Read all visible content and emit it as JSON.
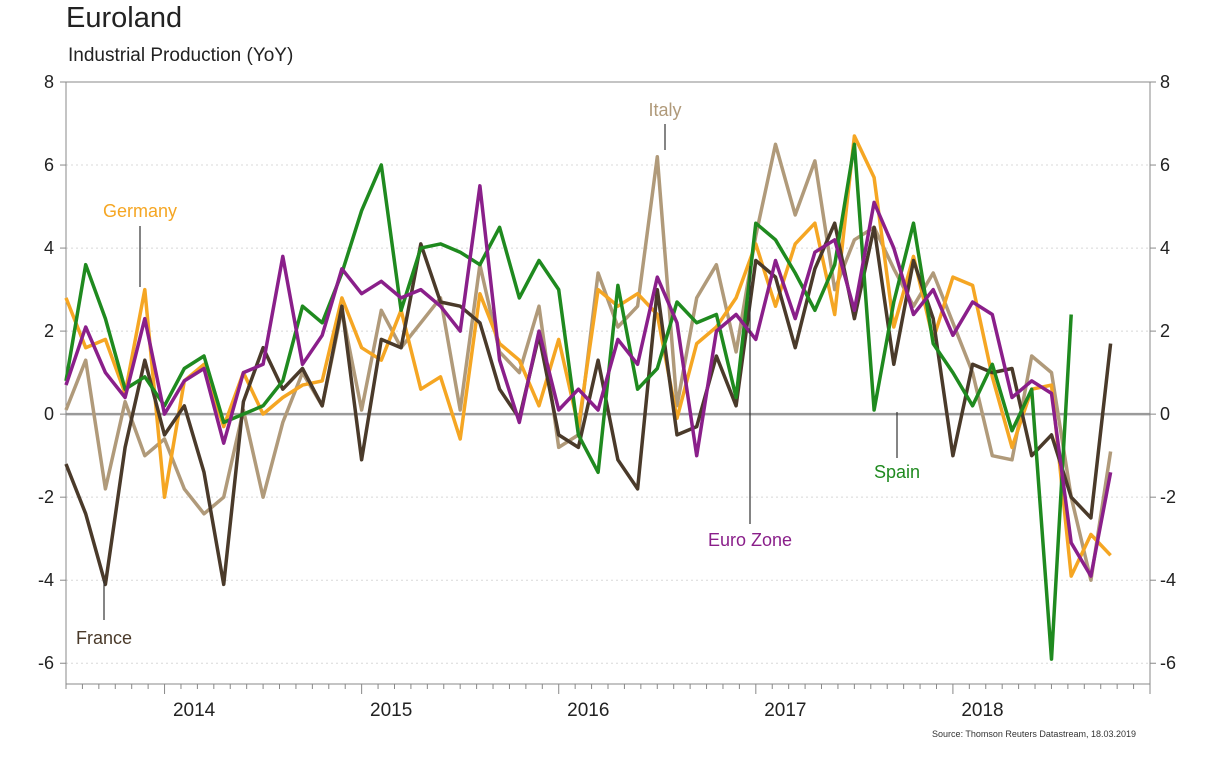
{
  "chart_data": {
    "type": "line",
    "title": "Euroland",
    "subtitle": "Industrial Production (YoY)",
    "source": "Source: Thomson Reuters Datastream, 18.03.2019",
    "ylim": [
      -6.5,
      8
    ],
    "yticks": [
      8,
      6,
      4,
      2,
      0,
      -2,
      -4,
      -6
    ],
    "year_labels": [
      {
        "label": "2014",
        "x": 2014.0
      },
      {
        "label": "2015",
        "x": 2015.0
      },
      {
        "label": "2016",
        "x": 2016.0
      },
      {
        "label": "2017",
        "x": 2017.0
      },
      {
        "label": "2018",
        "x": 2018.0
      }
    ],
    "xlim": [
      2013.5,
      2019.0
    ],
    "grid": true,
    "series": [
      {
        "name": "Italy",
        "color": "#b09a7a",
        "x": [
          2013.5,
          2013.6,
          2013.7,
          2013.8,
          2013.9,
          2014.0,
          2014.1,
          2014.2,
          2014.3,
          2014.4,
          2014.5,
          2014.6,
          2014.7,
          2014.8,
          2014.9,
          2015.0,
          2015.1,
          2015.2,
          2015.3,
          2015.4,
          2015.5,
          2015.6,
          2015.7,
          2015.8,
          2015.9,
          2016.0,
          2016.1,
          2016.2,
          2016.3,
          2016.4,
          2016.5,
          2016.6,
          2016.7,
          2016.8,
          2016.9,
          2017.0,
          2017.1,
          2017.2,
          2017.3,
          2017.4,
          2017.5,
          2017.6,
          2017.7,
          2017.8,
          2017.9,
          2018.0,
          2018.1,
          2018.2,
          2018.3,
          2018.4,
          2018.5,
          2018.6,
          2018.7,
          2018.8
        ],
        "y": [
          0.1,
          1.3,
          -1.8,
          0.3,
          -1.0,
          -0.6,
          -1.8,
          -2.4,
          -2.0,
          0.1,
          -2.0,
          -0.2,
          1.0,
          0.2,
          2.5,
          0.1,
          2.5,
          1.6,
          2.2,
          2.8,
          0.1,
          3.6,
          1.5,
          1.0,
          2.6,
          -0.8,
          -0.5,
          3.4,
          2.1,
          2.6,
          6.2,
          0.2,
          2.8,
          3.6,
          1.5,
          4.3,
          6.5,
          4.8,
          6.1,
          3.0,
          4.2,
          4.5,
          3.5,
          2.6,
          3.4,
          2.2,
          1.0,
          -1.0,
          -1.1,
          1.4,
          1.0,
          -2.0,
          -4.0,
          -0.9
        ]
      },
      {
        "name": "Germany",
        "color": "#f5a623",
        "x": [
          2013.5,
          2013.6,
          2013.7,
          2013.8,
          2013.9,
          2014.0,
          2014.1,
          2014.2,
          2014.3,
          2014.4,
          2014.5,
          2014.6,
          2014.7,
          2014.8,
          2014.9,
          2015.0,
          2015.1,
          2015.2,
          2015.3,
          2015.4,
          2015.5,
          2015.6,
          2015.7,
          2015.8,
          2015.9,
          2016.0,
          2016.1,
          2016.2,
          2016.3,
          2016.4,
          2016.5,
          2016.6,
          2016.7,
          2016.8,
          2016.9,
          2017.0,
          2017.1,
          2017.2,
          2017.3,
          2017.4,
          2017.5,
          2017.6,
          2017.7,
          2017.8,
          2017.9,
          2018.0,
          2018.1,
          2018.2,
          2018.3,
          2018.4,
          2018.5,
          2018.6,
          2018.7,
          2018.8
        ],
        "y": [
          2.8,
          1.6,
          1.8,
          0.5,
          3.0,
          -2.0,
          0.8,
          1.2,
          -0.3,
          1.0,
          0.0,
          0.4,
          0.7,
          0.8,
          2.8,
          1.6,
          1.3,
          2.5,
          0.6,
          0.9,
          -0.6,
          2.9,
          1.7,
          1.3,
          0.2,
          1.8,
          -0.3,
          3.0,
          2.6,
          2.9,
          2.4,
          -0.1,
          1.7,
          2.1,
          2.8,
          4.1,
          2.6,
          4.1,
          4.6,
          2.4,
          6.7,
          5.7,
          2.1,
          3.8,
          1.8,
          3.3,
          3.1,
          0.9,
          -0.8,
          0.6,
          0.7,
          -3.9,
          -2.9,
          -3.4
        ]
      },
      {
        "name": "France",
        "color": "#4a3a2a",
        "x": [
          2013.5,
          2013.6,
          2013.7,
          2013.8,
          2013.9,
          2014.0,
          2014.1,
          2014.2,
          2014.3,
          2014.4,
          2014.5,
          2014.6,
          2014.7,
          2014.8,
          2014.9,
          2015.0,
          2015.1,
          2015.2,
          2015.3,
          2015.4,
          2015.5,
          2015.6,
          2015.7,
          2015.8,
          2015.9,
          2016.0,
          2016.1,
          2016.2,
          2016.3,
          2016.4,
          2016.5,
          2016.6,
          2016.7,
          2016.8,
          2016.9,
          2017.0,
          2017.1,
          2017.2,
          2017.3,
          2017.4,
          2017.5,
          2017.6,
          2017.7,
          2017.8,
          2017.9,
          2018.0,
          2018.1,
          2018.2,
          2018.3,
          2018.4,
          2018.5,
          2018.6,
          2018.7,
          2018.8
        ],
        "y": [
          -1.2,
          -2.4,
          -4.1,
          -0.8,
          1.3,
          -0.5,
          0.2,
          -1.4,
          -4.1,
          0.3,
          1.6,
          0.6,
          1.1,
          0.2,
          2.6,
          -1.1,
          1.8,
          1.6,
          4.1,
          2.7,
          2.6,
          2.2,
          0.6,
          -0.1,
          1.9,
          -0.5,
          -0.8,
          1.3,
          -1.1,
          -1.8,
          3.0,
          -0.5,
          -0.3,
          1.4,
          0.2,
          3.7,
          3.3,
          1.6,
          3.5,
          4.6,
          2.3,
          4.5,
          1.2,
          3.7,
          2.3,
          -1.0,
          1.2,
          1.0,
          1.1,
          -1.0,
          -0.5,
          -2.0,
          -2.5,
          1.7
        ]
      },
      {
        "name": "Spain",
        "color": "#1f8a1f",
        "x": [
          2013.5,
          2013.6,
          2013.7,
          2013.8,
          2013.9,
          2014.0,
          2014.1,
          2014.2,
          2014.3,
          2014.4,
          2014.5,
          2014.6,
          2014.7,
          2014.8,
          2014.9,
          2015.0,
          2015.1,
          2015.2,
          2015.3,
          2015.4,
          2015.5,
          2015.6,
          2015.7,
          2015.8,
          2015.9,
          2016.0,
          2016.1,
          2016.2,
          2016.3,
          2016.4,
          2016.5,
          2016.6,
          2016.7,
          2016.8,
          2016.9,
          2017.0,
          2017.1,
          2017.2,
          2017.3,
          2017.4,
          2017.5,
          2017.6,
          2017.7,
          2017.8,
          2017.9,
          2018.0,
          2018.1,
          2018.2,
          2018.3,
          2018.4,
          2018.5,
          2018.6,
          2018.7,
          2018.8
        ],
        "y": [
          0.8,
          3.6,
          2.3,
          0.6,
          0.9,
          0.2,
          1.1,
          1.4,
          -0.2,
          0.0,
          0.2,
          0.8,
          2.6,
          2.2,
          3.4,
          4.9,
          6.0,
          2.5,
          4.0,
          4.1,
          3.9,
          3.6,
          4.5,
          2.8,
          3.7,
          3.0,
          -0.5,
          -1.4,
          3.1,
          0.6,
          1.1,
          2.7,
          2.2,
          2.4,
          0.4,
          4.6,
          4.2,
          3.4,
          2.5,
          3.6,
          6.5,
          0.1,
          2.7,
          4.6,
          1.7,
          1.0,
          0.2,
          1.2,
          -0.4,
          0.6,
          -5.9,
          2.4,
          null,
          null
        ]
      },
      {
        "name": "Euro Zone",
        "color": "#8a1f8a",
        "x": [
          2013.5,
          2013.6,
          2013.7,
          2013.8,
          2013.9,
          2014.0,
          2014.1,
          2014.2,
          2014.3,
          2014.4,
          2014.5,
          2014.6,
          2014.7,
          2014.8,
          2014.9,
          2015.0,
          2015.1,
          2015.2,
          2015.3,
          2015.4,
          2015.5,
          2015.6,
          2015.7,
          2015.8,
          2015.9,
          2016.0,
          2016.1,
          2016.2,
          2016.3,
          2016.4,
          2016.5,
          2016.6,
          2016.7,
          2016.8,
          2016.9,
          2017.0,
          2017.1,
          2017.2,
          2017.3,
          2017.4,
          2017.5,
          2017.6,
          2017.7,
          2017.8,
          2017.9,
          2018.0,
          2018.1,
          2018.2,
          2018.3,
          2018.4,
          2018.5,
          2018.6,
          2018.7,
          2018.8
        ],
        "y": [
          0.7,
          2.1,
          1.0,
          0.4,
          2.3,
          0.0,
          0.8,
          1.1,
          -0.7,
          1.0,
          1.2,
          3.8,
          1.2,
          1.9,
          3.5,
          2.9,
          3.2,
          2.8,
          3.0,
          2.6,
          2.0,
          5.5,
          1.3,
          -0.2,
          2.0,
          0.1,
          0.6,
          0.1,
          1.8,
          1.2,
          3.3,
          2.2,
          -1.0,
          2.0,
          2.4,
          1.8,
          3.7,
          2.3,
          3.9,
          4.2,
          2.5,
          5.1,
          4.0,
          2.4,
          3.0,
          1.9,
          2.7,
          2.4,
          0.4,
          0.8,
          0.5,
          -3.1,
          -3.9,
          -1.4
        ]
      }
    ],
    "annotations": [
      {
        "text": "Italy",
        "series": "Italy"
      },
      {
        "text": "Germany",
        "series": "Germany"
      },
      {
        "text": "France",
        "series": "France"
      },
      {
        "text": "Spain",
        "series": "Spain"
      },
      {
        "text": "Euro Zone",
        "series": "Euro Zone"
      }
    ]
  }
}
